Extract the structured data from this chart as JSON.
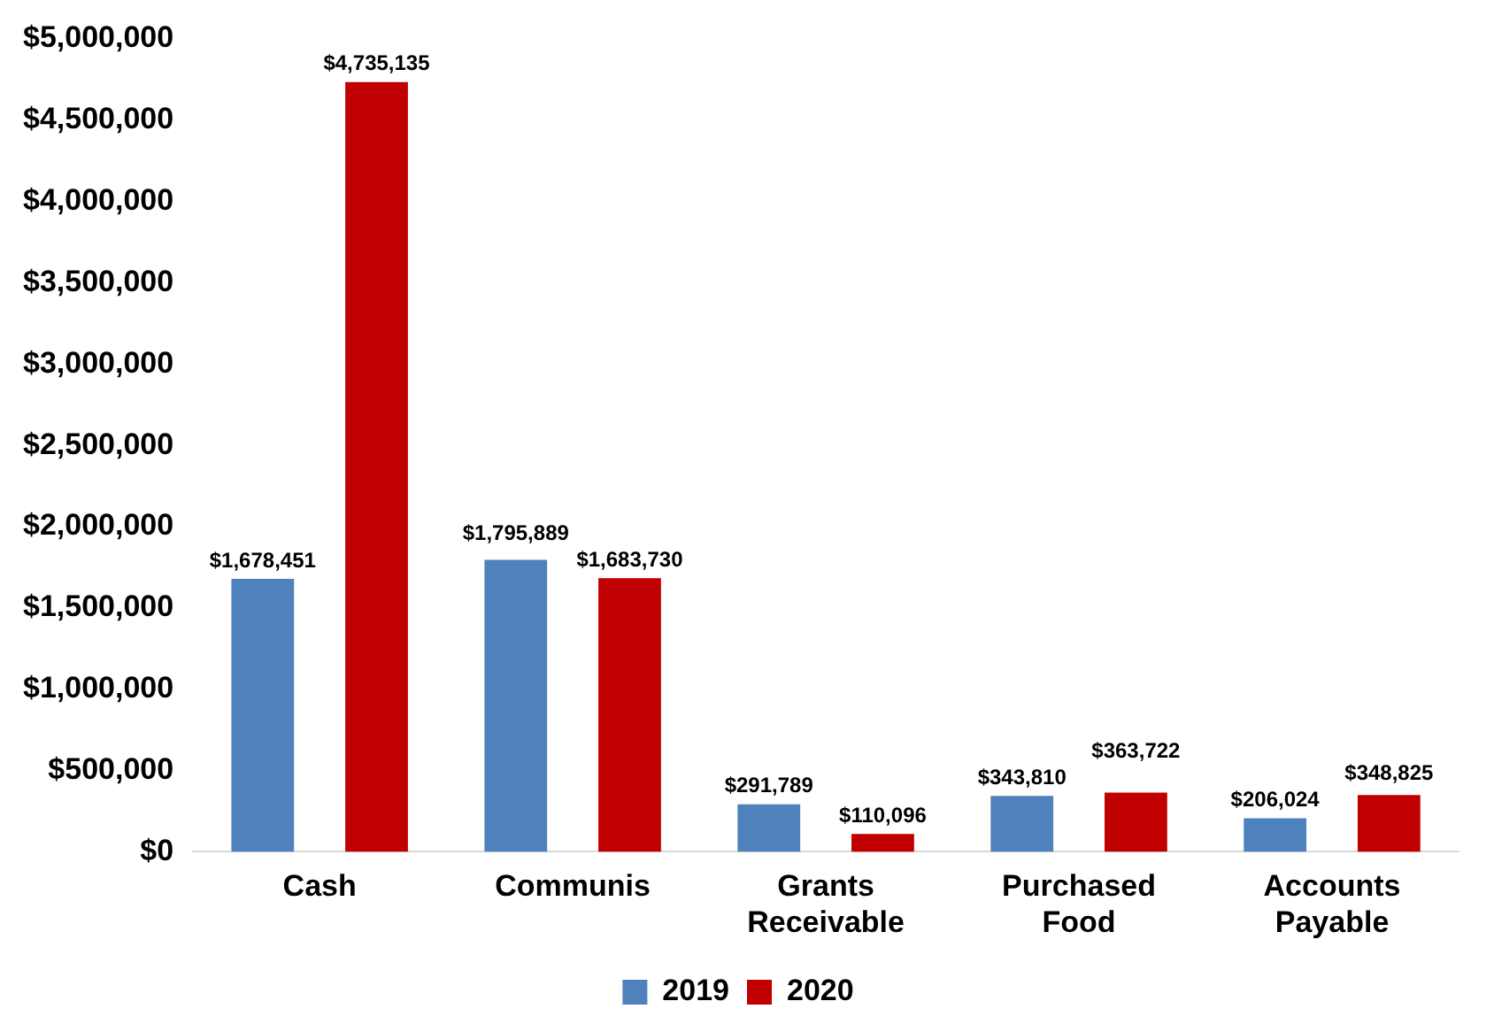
{
  "chart_data": {
    "type": "bar",
    "categories": [
      "Cash",
      "Communis",
      "Grants\nReceivable",
      "Purchased\nFood",
      "Accounts\nPayable"
    ],
    "series": [
      {
        "name": "2019",
        "color": "#4f81bd",
        "values": [
          1678451,
          1795889,
          291789,
          343810,
          206024
        ]
      },
      {
        "name": "2020",
        "color": "#c00000",
        "values": [
          4735135,
          1683730,
          110096,
          363722,
          348825
        ]
      }
    ],
    "ylim": [
      0,
      5000000
    ],
    "yticks": [
      {
        "value": 0,
        "label": "$0"
      },
      {
        "value": 500000,
        "label": "$500,000"
      },
      {
        "value": 1000000,
        "label": "$1,000,000"
      },
      {
        "value": 1500000,
        "label": "$1,500,000"
      },
      {
        "value": 2000000,
        "label": "$2,000,000"
      },
      {
        "value": 2500000,
        "label": "$2,500,000"
      },
      {
        "value": 3000000,
        "label": "$3,000,000"
      },
      {
        "value": 3500000,
        "label": "$3,500,000"
      },
      {
        "value": 4000000,
        "label": "$4,000,000"
      },
      {
        "value": 4500000,
        "label": "$4,500,000"
      },
      {
        "value": 5000000,
        "label": "$5,000,000"
      }
    ],
    "value_labels": [
      [
        "$1,678,451",
        "$1,795,889",
        "$291,789",
        "$343,810",
        "$206,024"
      ],
      [
        "$4,735,135",
        "$1,683,730",
        "$110,096",
        "$363,722",
        "$348,825"
      ]
    ],
    "grid": false,
    "legend": "bottom"
  }
}
